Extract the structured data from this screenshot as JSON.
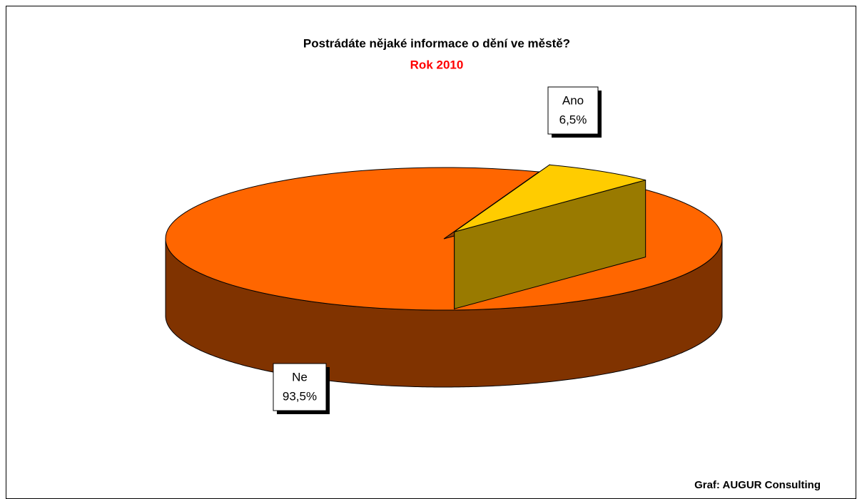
{
  "chart_data": {
    "type": "pie3d",
    "title": "Postrádáte nějaké informace o dění ve městě?",
    "subtitle": "Rok 2010",
    "categories": [
      "Ano",
      "Ne"
    ],
    "values": [
      6.5,
      93.5
    ],
    "value_labels": [
      "6,5%",
      "93,5%"
    ],
    "colors": [
      "#ffcc00",
      "#ff6600"
    ],
    "source": "Graf: AUGUR Consulting"
  }
}
